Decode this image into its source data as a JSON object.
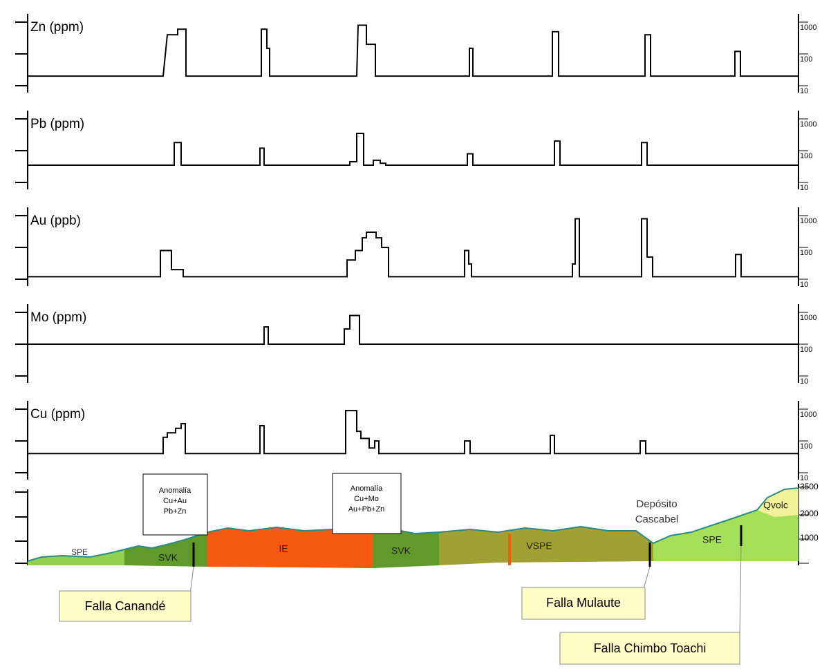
{
  "chart_data": [
    {
      "type": "line",
      "title": "Zn (ppm)",
      "color": "#000000",
      "log_scale": true,
      "xlim": [
        0,
        1115
      ],
      "ylim": [
        10,
        1000
      ],
      "yticks": [
        10,
        100,
        1000
      ],
      "x": [
        0,
        196,
        202,
        217,
        217,
        229,
        229,
        338,
        338,
        346,
        346,
        350,
        350,
        476,
        478,
        490,
        490,
        503,
        503,
        639,
        639,
        644,
        644,
        759,
        759,
        768,
        768,
        893,
        893,
        901,
        901,
        1023,
        1023,
        1031,
        1031,
        1115
      ],
      "values": [
        20,
        20,
        400,
        400,
        600,
        600,
        20,
        20,
        600,
        600,
        150,
        150,
        20,
        20,
        800,
        800,
        200,
        200,
        20,
        20,
        150,
        150,
        20,
        20,
        500,
        500,
        20,
        20,
        400,
        400,
        20,
        20,
        120,
        120,
        20,
        20
      ]
    },
    {
      "type": "line",
      "title": "Pb (ppm)",
      "color": "#000000",
      "log_scale": true,
      "xlim": [
        0,
        1115
      ],
      "ylim": [
        10,
        1000
      ],
      "yticks": [
        10,
        100,
        1000
      ],
      "x": [
        0,
        212,
        212,
        222,
        222,
        336,
        336,
        342,
        342,
        466,
        466,
        476,
        476,
        486,
        486,
        500,
        500,
        510,
        510,
        518,
        518,
        636,
        636,
        644,
        644,
        762,
        762,
        770,
        770,
        888,
        888,
        896,
        896,
        1115
      ],
      "values": [
        35,
        35,
        180,
        180,
        35,
        35,
        120,
        120,
        35,
        35,
        45,
        45,
        350,
        350,
        35,
        35,
        50,
        50,
        40,
        40,
        35,
        35,
        80,
        80,
        35,
        35,
        200,
        200,
        35,
        35,
        180,
        180,
        35,
        35
      ]
    },
    {
      "type": "line",
      "title": "Au (ppb)",
      "color": "#000000",
      "log_scale": true,
      "xlim": [
        0,
        1115
      ],
      "ylim": [
        10,
        1000
      ],
      "yticks": [
        10,
        100,
        1000
      ],
      "x": [
        0,
        192,
        192,
        208,
        208,
        225,
        225,
        462,
        462,
        474,
        474,
        484,
        484,
        490,
        490,
        504,
        504,
        512,
        512,
        522,
        522,
        632,
        632,
        638,
        638,
        642,
        642,
        788,
        788,
        792,
        792,
        798,
        798,
        888,
        888,
        896,
        896,
        904,
        904,
        1024,
        1024,
        1032,
        1032,
        1115
      ],
      "values": [
        12,
        12,
        80,
        80,
        20,
        20,
        12,
        12,
        40,
        40,
        80,
        80,
        200,
        200,
        300,
        300,
        200,
        200,
        100,
        100,
        12,
        12,
        80,
        80,
        30,
        30,
        12,
        12,
        30,
        30,
        800,
        800,
        12,
        12,
        800,
        800,
        50,
        50,
        12,
        12,
        60,
        60,
        12,
        12
      ]
    },
    {
      "type": "line",
      "title": "Mo (ppm)",
      "color": "#000000",
      "log_scale": true,
      "xlim": [
        0,
        1115
      ],
      "ylim": [
        10,
        1000
      ],
      "yticks": [
        10,
        100,
        1000
      ],
      "x": [
        0,
        342,
        342,
        348,
        348,
        458,
        458,
        466,
        466,
        480,
        480,
        1115
      ],
      "values": [
        100,
        100,
        350,
        350,
        100,
        100,
        300,
        300,
        800,
        800,
        100,
        100
      ]
    },
    {
      "type": "line",
      "title": "Cu (ppm)",
      "color": "#000000",
      "log_scale": true,
      "xlim": [
        0,
        1115
      ],
      "ylim": [
        10,
        1000
      ],
      "yticks": [
        10,
        100,
        1000
      ],
      "x": [
        0,
        196,
        196,
        202,
        202,
        214,
        214,
        222,
        222,
        228,
        228,
        336,
        336,
        342,
        342,
        460,
        460,
        476,
        476,
        482,
        482,
        494,
        494,
        502,
        502,
        508,
        508,
        632,
        632,
        640,
        640,
        756,
        756,
        762,
        762,
        886,
        886,
        894,
        894,
        1115
      ],
      "values": [
        40,
        40,
        130,
        130,
        180,
        180,
        250,
        250,
        350,
        350,
        40,
        40,
        300,
        300,
        40,
        40,
        900,
        900,
        200,
        200,
        120,
        120,
        60,
        60,
        100,
        100,
        40,
        40,
        100,
        100,
        40,
        40,
        150,
        150,
        40,
        40,
        100,
        100,
        40,
        40
      ]
    }
  ],
  "section": {
    "elevation_labels": [
      3500,
      2000,
      1000
    ],
    "units": [
      "SPE",
      "SVK",
      "IE",
      "SVK",
      "VSPE",
      "SPE",
      "Qvolc"
    ],
    "anomaly_1": [
      "Anomalía",
      "Cu+Au",
      "Pb+Zn"
    ],
    "anomaly_2": [
      "Anomalía",
      "Cu+Mo",
      "Au+Pb+Zn"
    ],
    "deposit": [
      "Depósito",
      "Cascabel"
    ],
    "faults": [
      "Falla Canandé",
      "Falla Mulaute",
      "Falla Chimbo Toachi"
    ]
  }
}
